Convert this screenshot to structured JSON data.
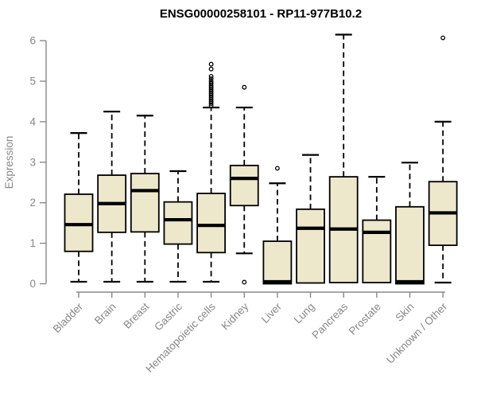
{
  "figure": {
    "background_color": "#ffffff"
  },
  "chart_data": {
    "type": "boxplot",
    "title": "ENSG00000258101 - RP11-977B10.2",
    "xlabel": "",
    "ylabel": "Expression",
    "ylim": [
      0,
      6
    ],
    "yticks": [
      0,
      1,
      2,
      3,
      4,
      5,
      6
    ],
    "grid": false,
    "legend": null,
    "categories": [
      "Bladder",
      "Brain",
      "Breast",
      "Gastric",
      "Hematopoietic cells",
      "Kidney",
      "Liver",
      "Lung",
      "Pancreas",
      "Prostate",
      "Skin",
      "Unknown / Other"
    ],
    "boxes": [
      {
        "category": "Bladder",
        "whisker_low": 0.05,
        "q1": 0.8,
        "median": 1.46,
        "q3": 2.21,
        "whisker_high": 3.72,
        "outliers": []
      },
      {
        "category": "Brain",
        "whisker_low": 0.05,
        "q1": 1.27,
        "median": 1.98,
        "q3": 2.68,
        "whisker_high": 4.25,
        "outliers": []
      },
      {
        "category": "Breast",
        "whisker_low": 0.05,
        "q1": 1.28,
        "median": 2.3,
        "q3": 2.72,
        "whisker_high": 4.15,
        "outliers": []
      },
      {
        "category": "Gastric",
        "whisker_low": 0.05,
        "q1": 0.98,
        "median": 1.58,
        "q3": 2.02,
        "whisker_high": 2.78,
        "outliers": []
      },
      {
        "category": "Hematopoietic cells",
        "whisker_low": 0.05,
        "q1": 0.77,
        "median": 1.44,
        "q3": 2.23,
        "whisker_high": 4.35,
        "outliers": [
          4.4,
          4.45,
          4.5,
          4.55,
          4.6,
          4.65,
          4.7,
          4.75,
          4.8,
          4.85,
          4.9,
          4.95,
          5.0,
          5.06,
          5.12,
          5.3,
          5.42
        ]
      },
      {
        "category": "Kidney",
        "whisker_low": 0.75,
        "q1": 1.93,
        "median": 2.6,
        "q3": 2.92,
        "whisker_high": 4.35,
        "outliers": [
          4.85,
          0.04
        ]
      },
      {
        "category": "Liver",
        "whisker_low": 0.0,
        "q1": 0.0,
        "median": 0.05,
        "q3": 1.05,
        "whisker_high": 2.48,
        "outliers": [
          2.85
        ]
      },
      {
        "category": "Lung",
        "whisker_low": 0.02,
        "q1": 0.02,
        "median": 1.37,
        "q3": 1.84,
        "whisker_high": 3.18,
        "outliers": []
      },
      {
        "category": "Pancreas",
        "whisker_low": 0.03,
        "q1": 0.03,
        "median": 1.35,
        "q3": 2.64,
        "whisker_high": 6.15,
        "outliers": []
      },
      {
        "category": "Prostate",
        "whisker_low": 0.03,
        "q1": 0.03,
        "median": 1.27,
        "q3": 1.57,
        "whisker_high": 2.64,
        "outliers": []
      },
      {
        "category": "Skin",
        "whisker_low": 0.0,
        "q1": 0.0,
        "median": 0.05,
        "q3": 1.9,
        "whisker_high": 2.99,
        "outliers": []
      },
      {
        "category": "Unknown / Other",
        "whisker_low": 0.03,
        "q1": 0.95,
        "median": 1.75,
        "q3": 2.52,
        "whisker_high": 4.0,
        "outliers": [
          6.07
        ]
      }
    ],
    "colors": {
      "box_fill": "#ede8cc",
      "box_stroke": "#000000",
      "median_color": "#000000",
      "whisker_color": "#000000",
      "outlier_color": "#000000",
      "axis_color": "#888888",
      "label_color": "#878787",
      "title_color": "#000000"
    }
  }
}
